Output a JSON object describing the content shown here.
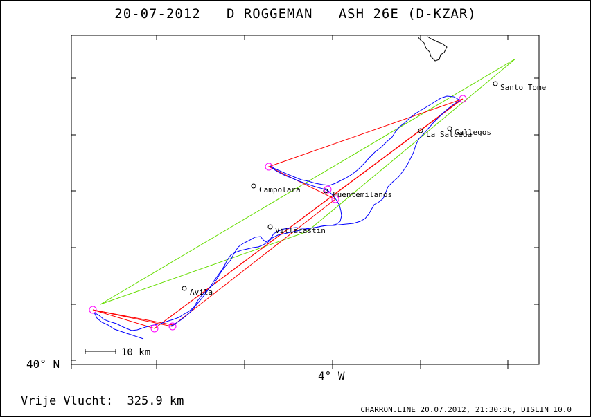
{
  "title": "20-07-2012   D ROGGEMAN   ASH 26E (D-KZAR)",
  "map": {
    "latitude_label": "40° N",
    "longitude_label": "4° W",
    "scale_bar_label": "10 km",
    "places": [
      {
        "name": "Santo Tome",
        "kind": "town"
      },
      {
        "name": "Gallegos",
        "kind": "town"
      },
      {
        "name": "La Salceda",
        "kind": "town"
      },
      {
        "name": "Campolara",
        "kind": "town"
      },
      {
        "name": "Fuentemilanos",
        "kind": "town"
      },
      {
        "name": "Villacastin",
        "kind": "town"
      },
      {
        "name": "Avila",
        "kind": "town"
      }
    ],
    "colors": {
      "track": "#0000ff",
      "declared_route": "#ff0000",
      "free_flight_route": "#66dd00",
      "turnpoint": "#ff00ff",
      "coast": "#000000"
    }
  },
  "flight_distance": "Vrije Vlucht:  325.9 km",
  "footer": "CHARRON.LINE 20.07.2012, 21:30:36, DISLIN 10.0"
}
